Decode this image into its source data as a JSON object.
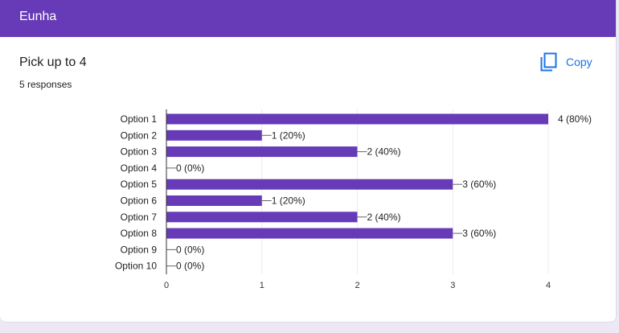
{
  "header": {
    "title": "Eunha"
  },
  "question": {
    "title": "Pick up to 4",
    "responses": "5 responses"
  },
  "copy": {
    "label": "Copy",
    "icon": "copy-icon"
  },
  "colors": {
    "header": "#673ab7",
    "bar": "#673ab7",
    "accent": "#1a73e8",
    "background": "#ede7f6"
  },
  "chart_data": {
    "type": "bar",
    "orientation": "horizontal",
    "categories": [
      "Option 1",
      "Option 2",
      "Option 3",
      "Option 4",
      "Option 5",
      "Option 6",
      "Option 7",
      "Option 8",
      "Option 9",
      "Option 10"
    ],
    "values": [
      4,
      1,
      2,
      0,
      3,
      1,
      2,
      3,
      0,
      0
    ],
    "data_labels": [
      "4 (80%)",
      "1 (20%)",
      "2 (40%)",
      "0 (0%)",
      "3 (60%)",
      "1 (20%)",
      "2 (40%)",
      "3 (60%)",
      "0 (0%)",
      "0 (0%)"
    ],
    "x_ticks": [
      "0",
      "1",
      "2",
      "3",
      "4"
    ],
    "xlim": [
      0,
      4
    ],
    "grid": true
  }
}
